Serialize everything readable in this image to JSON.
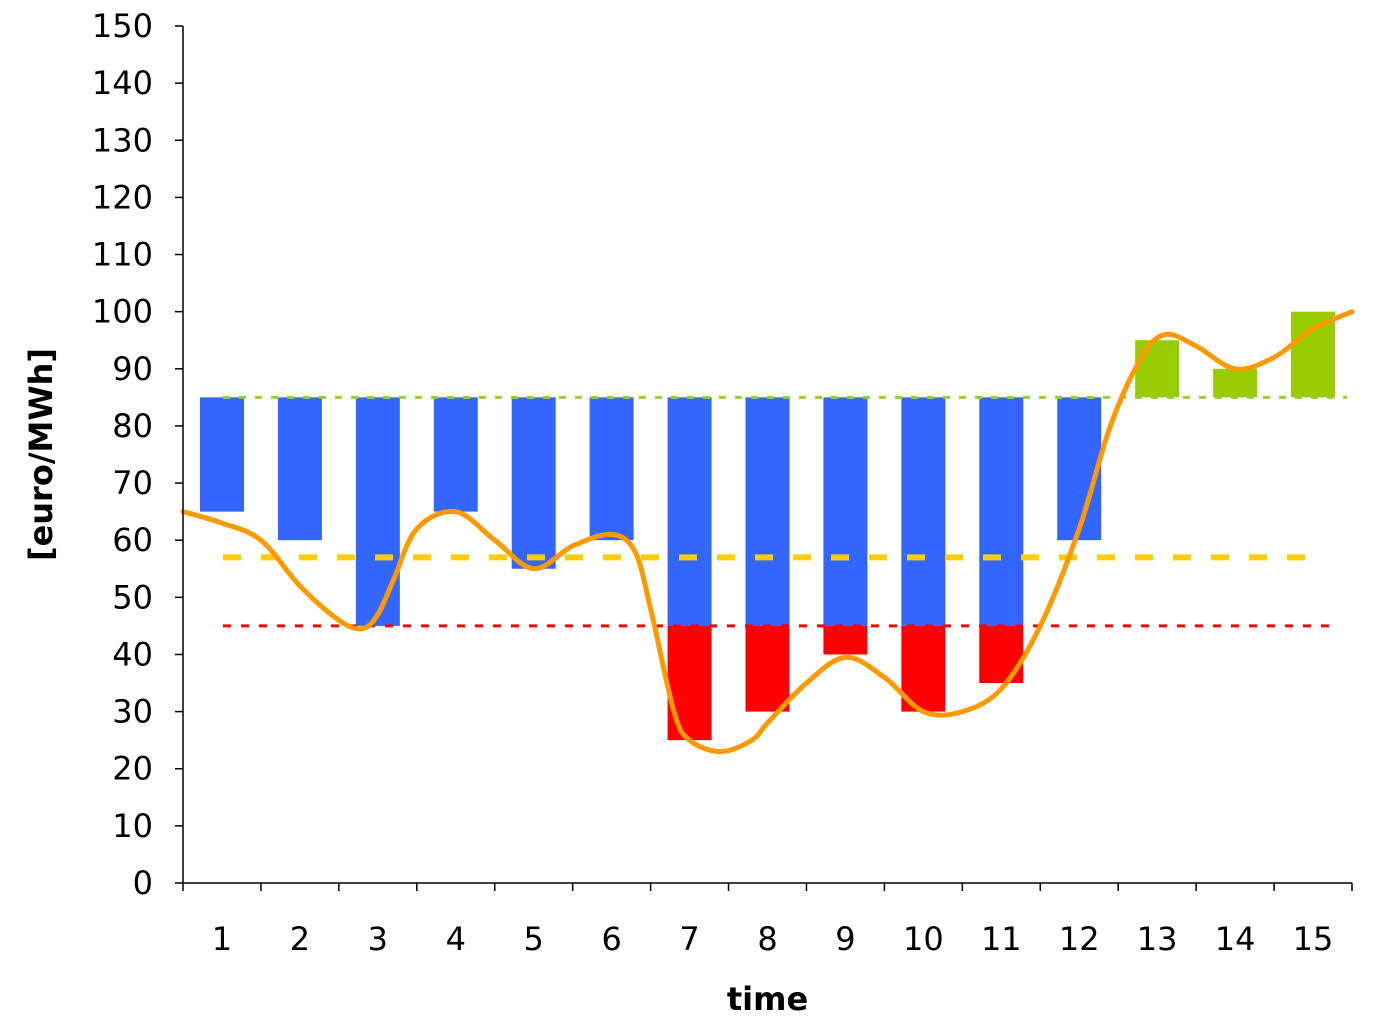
{
  "chart_data": {
    "type": "bar",
    "xlabel": "time",
    "ylabel": "[euro/MWh]",
    "ylim": [
      0,
      150
    ],
    "yticks": [
      0,
      10,
      20,
      30,
      40,
      50,
      60,
      70,
      80,
      90,
      100,
      110,
      120,
      130,
      140,
      150
    ],
    "categories": [
      "1",
      "2",
      "3",
      "4",
      "5",
      "6",
      "7",
      "8",
      "9",
      "10",
      "11",
      "12",
      "13",
      "14",
      "15"
    ],
    "reference_lines": {
      "upper": 85,
      "mean": 57,
      "lower": 45
    },
    "bars": [
      {
        "category": "1",
        "from": 65,
        "to": 85,
        "color": "blue"
      },
      {
        "category": "2",
        "from": 60,
        "to": 85,
        "color": "blue"
      },
      {
        "category": "3",
        "from": 45,
        "to": 85,
        "color": "blue"
      },
      {
        "category": "4",
        "from": 65,
        "to": 85,
        "color": "blue"
      },
      {
        "category": "5",
        "from": 55,
        "to": 85,
        "color": "blue"
      },
      {
        "category": "6",
        "from": 60,
        "to": 85,
        "color": "blue"
      },
      {
        "category": "7",
        "from": 45,
        "to": 85,
        "color": "blue"
      },
      {
        "category": "7",
        "from": 25,
        "to": 45,
        "color": "red"
      },
      {
        "category": "8",
        "from": 45,
        "to": 85,
        "color": "blue"
      },
      {
        "category": "8",
        "from": 30,
        "to": 45,
        "color": "red"
      },
      {
        "category": "9",
        "from": 45,
        "to": 85,
        "color": "blue"
      },
      {
        "category": "9",
        "from": 40,
        "to": 45,
        "color": "red"
      },
      {
        "category": "10",
        "from": 45,
        "to": 85,
        "color": "blue"
      },
      {
        "category": "10",
        "from": 30,
        "to": 45,
        "color": "red"
      },
      {
        "category": "11",
        "from": 45,
        "to": 85,
        "color": "blue"
      },
      {
        "category": "11",
        "from": 35,
        "to": 45,
        "color": "red"
      },
      {
        "category": "12",
        "from": 60,
        "to": 85,
        "color": "blue"
      },
      {
        "category": "13",
        "from": 85,
        "to": 95,
        "color": "green"
      },
      {
        "category": "14",
        "from": 85,
        "to": 90,
        "color": "green"
      },
      {
        "category": "15",
        "from": 85,
        "to": 100,
        "color": "green"
      }
    ],
    "price_curve": {
      "x": [
        0.5,
        1,
        1.5,
        2,
        2.5,
        2.8,
        3,
        3.2,
        3.5,
        4,
        4.5,
        5,
        5.5,
        6,
        6.3,
        6.5,
        6.8,
        7,
        7.4,
        7.8,
        8,
        8.5,
        9,
        9.5,
        10,
        10.5,
        11,
        11.5,
        12,
        12.4,
        12.8,
        13.1,
        13.5,
        14,
        14.5,
        15,
        15.5
      ],
      "y": [
        65,
        63,
        60,
        52,
        46,
        44.5,
        47,
        53,
        62,
        65,
        60,
        55,
        59,
        61,
        58,
        48,
        30,
        25,
        23,
        25,
        28,
        35,
        39.5,
        36,
        30,
        30,
        34,
        45,
        62,
        80,
        92,
        96,
        94,
        90,
        92,
        97,
        100
      ]
    },
    "colors": {
      "blue": "#3366ff",
      "red": "#ff0000",
      "green": "#99cc00",
      "price_curve": "#ff9900",
      "upper_line": "#99cc33",
      "mean_line": "#ffcc00",
      "lower_line": "#ff0000"
    },
    "grid": false,
    "legend": "none"
  }
}
